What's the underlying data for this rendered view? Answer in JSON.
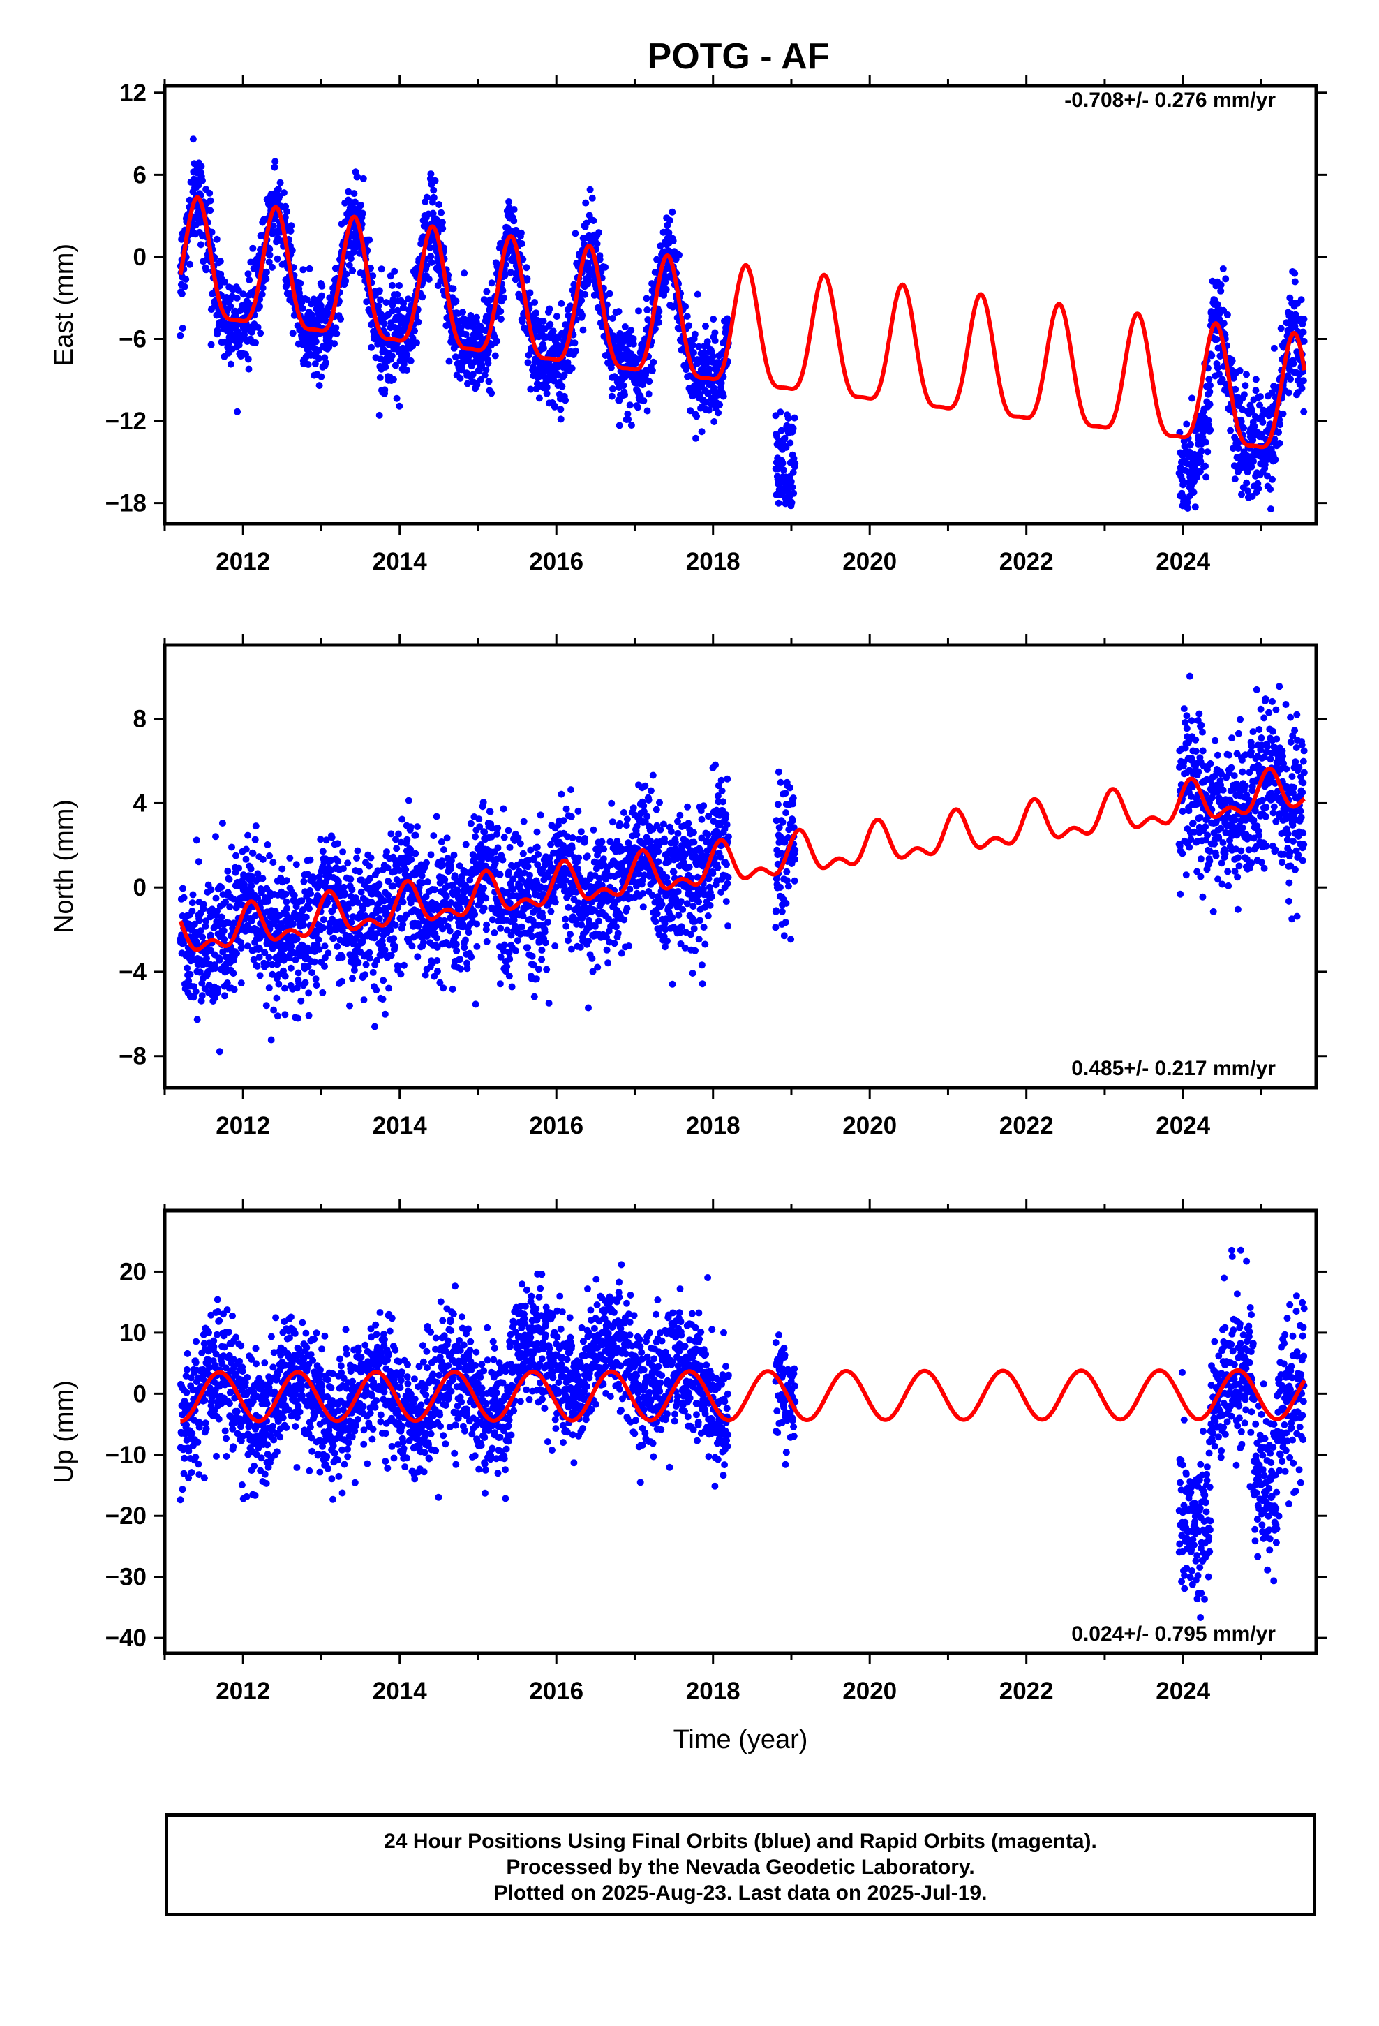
{
  "title": "POTG - AF",
  "footer": {
    "line1": "24 Hour Positions Using Final Orbits (blue) and Rapid Orbits (magenta).",
    "line2": "Processed by the Nevada Geodetic Laboratory.",
    "line3": "Plotted on 2025-Aug-23. Last data on 2025-Jul-19."
  },
  "colors": {
    "data": "#0000ff",
    "model": "#ff0000",
    "frame": "#000000"
  },
  "chart_data": [
    {
      "type": "scatter",
      "panel": "east",
      "ylabel": "East (mm)",
      "xlabel": "",
      "rate_label": "-0.708+/- 0.276 mm/yr",
      "rate_placement": "top-right",
      "xlim": [
        2011.0,
        2025.7
      ],
      "ylim": [
        -19.5,
        12.5
      ],
      "xticks": [
        2012,
        2014,
        2016,
        2018,
        2020,
        2022,
        2024
      ],
      "yticks": [
        12,
        6,
        0,
        -6,
        -12,
        -18
      ],
      "ytick_labels": [
        "12",
        "6",
        "0",
        "−6",
        "−12",
        "−18"
      ],
      "grid": false,
      "model": {
        "start": 2011.2,
        "end": 2025.55,
        "rate": -0.708,
        "offset": -1.0,
        "ref_epoch": 2011.2,
        "amplitude": 4.3,
        "phase_peak": 0.42,
        "semi_amplitude": 1.2
      },
      "data_segments": [
        {
          "start": 2011.2,
          "end": 2018.2,
          "spread": 1.6
        },
        {
          "start": 2018.8,
          "end": 2019.05,
          "spread": 2.2
        },
        {
          "start": 2023.95,
          "end": 2025.55,
          "spread": 2.0
        }
      ],
      "offsets": [
        {
          "start": 2018.8,
          "end": 2019.05,
          "shift": -6.0
        },
        {
          "start": 2023.95,
          "end": 2024.35,
          "shift": -3.5
        }
      ],
      "y_range_observed": [
        -18.5,
        12
      ]
    },
    {
      "type": "scatter",
      "panel": "north",
      "ylabel": "North (mm)",
      "xlabel": "",
      "rate_label": "0.485+/- 0.217 mm/yr",
      "rate_placement": "bottom-right",
      "xlim": [
        2011.0,
        2025.7
      ],
      "ylim": [
        -9.5,
        11.5
      ],
      "xticks": [
        2012,
        2014,
        2016,
        2018,
        2020,
        2022,
        2024
      ],
      "yticks": [
        8,
        4,
        0,
        -4,
        -8
      ],
      "ytick_labels": [
        "8",
        "4",
        "0",
        "−4",
        "−8"
      ],
      "grid": false,
      "model": {
        "start": 2011.2,
        "end": 2025.55,
        "rate": 0.485,
        "offset": -2.4,
        "ref_epoch": 2011.2,
        "amplitude": 0.8,
        "phase_peak": 0.1,
        "semi_amplitude": 0.5
      },
      "data_segments": [
        {
          "start": 2011.2,
          "end": 2018.2,
          "spread": 1.6
        },
        {
          "start": 2018.8,
          "end": 2019.05,
          "spread": 1.6
        },
        {
          "start": 2023.95,
          "end": 2025.55,
          "spread": 1.8
        }
      ],
      "offsets": [],
      "y_range_observed": [
        -9,
        11
      ]
    },
    {
      "type": "scatter",
      "panel": "up",
      "ylabel": "Up (mm)",
      "xlabel": "Time (year)",
      "rate_label": "0.024+/- 0.795 mm/yr",
      "rate_placement": "bottom-right",
      "xlim": [
        2011.0,
        2025.7
      ],
      "ylim": [
        -42.5,
        30
      ],
      "xticks": [
        2012,
        2014,
        2016,
        2018,
        2020,
        2022,
        2024
      ],
      "yticks": [
        20,
        10,
        0,
        -10,
        -20,
        -30,
        -40
      ],
      "ytick_labels": [
        "20",
        "10",
        "0",
        "−10",
        "−20",
        "−30",
        "−40"
      ],
      "grid": false,
      "model": {
        "start": 2011.2,
        "end": 2025.55,
        "rate": 0.024,
        "offset": -0.5,
        "ref_epoch": 2011.2,
        "amplitude": 4.0,
        "phase_peak": 0.7,
        "semi_amplitude": 0.0
      },
      "data_segments": [
        {
          "start": 2011.2,
          "end": 2018.2,
          "spread": 5.0
        },
        {
          "start": 2018.8,
          "end": 2019.05,
          "spread": 4.0
        },
        {
          "start": 2023.95,
          "end": 2025.55,
          "spread": 6.0
        }
      ],
      "offsets": [
        {
          "start": 2015.4,
          "end": 2017.6,
          "shift": 5.0
        },
        {
          "start": 2023.95,
          "end": 2024.35,
          "shift": -18.0
        },
        {
          "start": 2024.9,
          "end": 2025.2,
          "shift": -12.0
        }
      ],
      "y_range_observed": [
        -41,
        28
      ]
    }
  ]
}
